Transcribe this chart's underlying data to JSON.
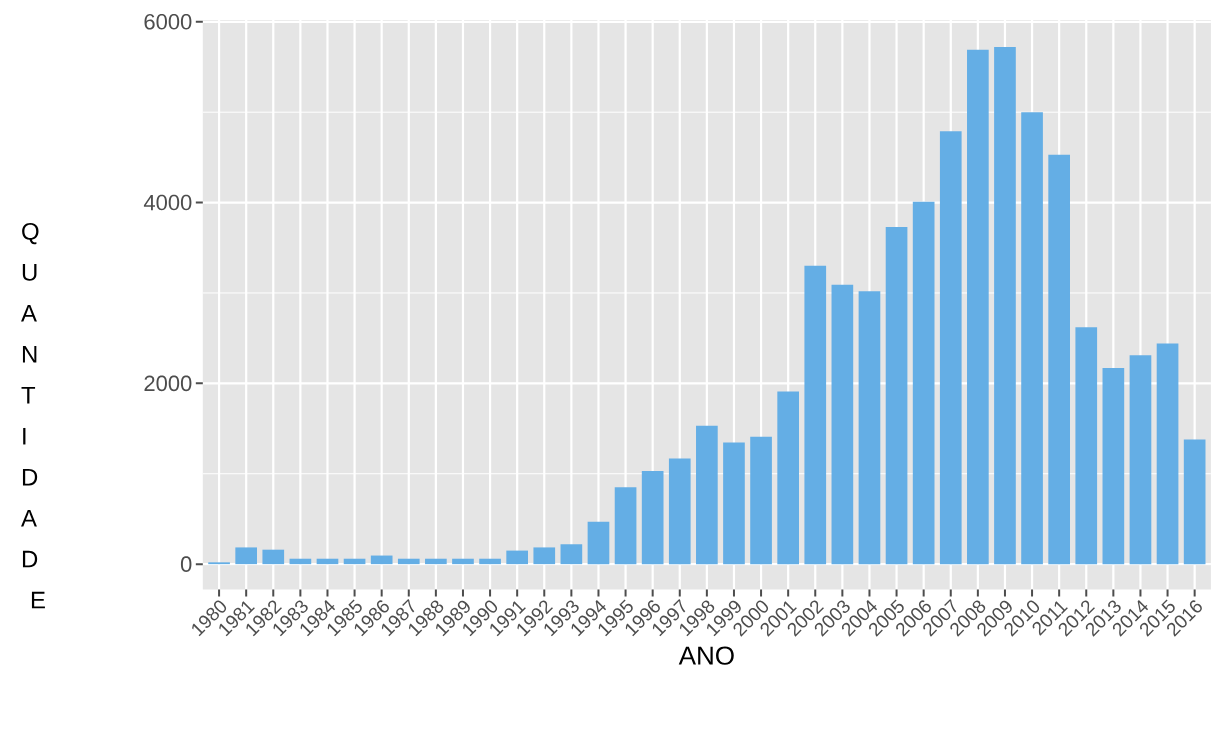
{
  "chart_data": {
    "type": "bar",
    "xlabel": "ANO",
    "ylabel": "QUANTIDADE",
    "categories": [
      "1980",
      "1981",
      "1982",
      "1983",
      "1984",
      "1985",
      "1986",
      "1987",
      "1988",
      "1989",
      "1990",
      "1991",
      "1992",
      "1993",
      "1994",
      "1995",
      "1996",
      "1997",
      "1998",
      "1999",
      "2000",
      "2001",
      "2002",
      "2003",
      "2004",
      "2005",
      "2006",
      "2007",
      "2008",
      "2009",
      "2010",
      "2011",
      "2012",
      "2013",
      "2014",
      "2015",
      "2016"
    ],
    "values": [
      20,
      185,
      160,
      60,
      60,
      60,
      95,
      60,
      60,
      60,
      60,
      150,
      185,
      220,
      470,
      850,
      1030,
      1170,
      1530,
      1345,
      1410,
      1910,
      3300,
      3090,
      3020,
      3730,
      4010,
      4790,
      5690,
      5720,
      5000,
      4530,
      2620,
      2170,
      2310,
      2440,
      1380
    ],
    "color": "#64aee5",
    "ylim": [
      -280,
      6020
    ],
    "yticks": [
      0,
      2000,
      4000,
      6000
    ],
    "grid": true
  }
}
